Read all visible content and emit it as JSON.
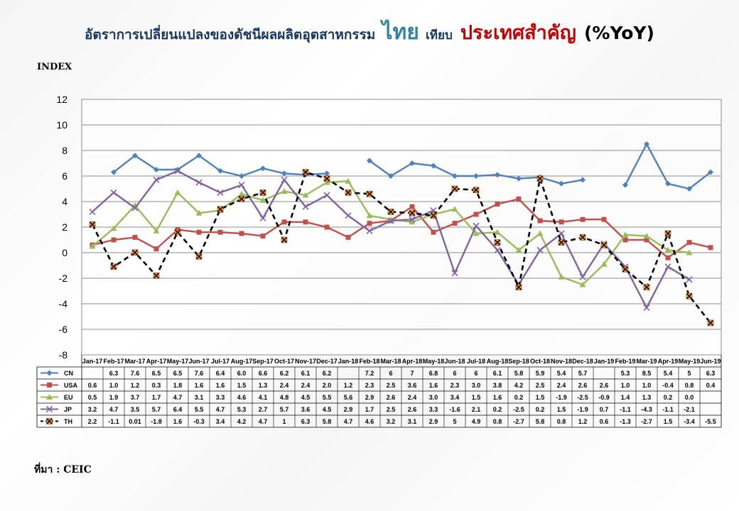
{
  "header": {
    "title_part1": "อัตราการเปลี่ยนแปลงของดัชนีผลผลิตอุตสาหกรรม",
    "title_thai": "ไทย",
    "title_part2": "เทียบ",
    "title_countries": "ประเทศสำคัญ",
    "title_yoy": "(%YoY)"
  },
  "ylabel": "INDEX",
  "source": "ที่มา : CEIC",
  "chart_data": {
    "type": "line",
    "ylabel": "INDEX",
    "ylim": [
      -8,
      12
    ],
    "yticks": [
      -8,
      -6,
      -4,
      -2,
      0,
      2,
      4,
      6,
      8,
      10,
      12
    ],
    "grid": true,
    "legend": "data-table",
    "categories": [
      "Jan-17",
      "Feb-17",
      "Mar-17",
      "Apr-17",
      "May-17",
      "Jun-17",
      "Jul-17",
      "Aug-17",
      "Sep-17",
      "Oct-17",
      "Nov-17",
      "Dec-17",
      "Jan-18",
      "Feb-18",
      "Mar-18",
      "Apr-18",
      "May-18",
      "Jun-18",
      "Jul-18",
      "Aug-18",
      "Sep-18",
      "Oct-18",
      "Nov-18",
      "Dec-18",
      "Jan-19",
      "Feb-19",
      "Mar-19",
      "Apr-19",
      "May-19",
      "Jun-19"
    ],
    "series": [
      {
        "name": "CN",
        "color": "#4f81bd",
        "marker": "diamond",
        "dashed": false,
        "values": [
          null,
          6.3,
          7.6,
          6.5,
          6.5,
          7.6,
          6.4,
          6.0,
          6.6,
          6.2,
          6.1,
          6.2,
          null,
          7.2,
          6,
          7,
          6.8,
          6,
          6,
          6.1,
          5.8,
          5.9,
          5.4,
          5.7,
          null,
          5.3,
          8.5,
          5.4,
          5,
          6.3
        ],
        "labels": [
          "",
          "6.3",
          "7.6",
          "6.5",
          "6.5",
          "7.6",
          "6.4",
          "6.0",
          "6.6",
          "6.2",
          "6.1",
          "6.2",
          "",
          "7.2",
          "6",
          "7",
          "6.8",
          "6",
          "6",
          "6.1",
          "5.8",
          "5.9",
          "5.4",
          "5.7",
          "",
          "5.3",
          "8.5",
          "5.4",
          "5",
          "6.3"
        ]
      },
      {
        "name": "USA",
        "color": "#c0504d",
        "marker": "square",
        "dashed": false,
        "values": [
          0.6,
          1.0,
          1.2,
          0.3,
          1.8,
          1.6,
          1.6,
          1.5,
          1.3,
          2.4,
          2.4,
          2.0,
          1.2,
          2.3,
          2.5,
          3.6,
          1.6,
          2.3,
          3.0,
          3.8,
          4.2,
          2.5,
          2.4,
          2.6,
          2.6,
          1.0,
          1.0,
          -0.4,
          0.8,
          0.4
        ],
        "labels": [
          "0.6",
          "1.0",
          "1.2",
          "0.3",
          "1.8",
          "1.6",
          "1.6",
          "1.5",
          "1.3",
          "2.4",
          "2.4",
          "2.0",
          "1.2",
          "2.3",
          "2.5",
          "3.6",
          "1.6",
          "2.3",
          "3.0",
          "3.8",
          "4.2",
          "2.5",
          "2.4",
          "2.6",
          "2.6",
          "1.0",
          "1.0",
          "-0.4",
          "0.8",
          "0.4"
        ]
      },
      {
        "name": "EU",
        "color": "#9bbb59",
        "marker": "triangle",
        "dashed": false,
        "values": [
          0.5,
          1.9,
          3.7,
          1.7,
          4.7,
          3.1,
          3.3,
          4.6,
          4.1,
          4.8,
          4.5,
          5.5,
          5.6,
          2.9,
          2.6,
          2.4,
          3.0,
          3.4,
          1.5,
          1.6,
          0.2,
          1.5,
          -1.9,
          -2.5,
          -0.9,
          1.4,
          1.3,
          0.2,
          0.0,
          null
        ],
        "labels": [
          "0.5",
          "1.9",
          "3.7",
          "1.7",
          "4.7",
          "3.1",
          "3.3",
          "4.6",
          "4.1",
          "4.8",
          "4.5",
          "5.5",
          "5.6",
          "2.9",
          "2.6",
          "2.4",
          "3.0",
          "3.4",
          "1.5",
          "1.6",
          "0.2",
          "1.5",
          "-1.9",
          "-2.5",
          "-0.9",
          "1.4",
          "1.3",
          "0.2",
          "0.0",
          ""
        ]
      },
      {
        "name": "JP",
        "color": "#8064a2",
        "marker": "x",
        "dashed": false,
        "values": [
          3.2,
          4.7,
          3.5,
          5.7,
          6.4,
          5.5,
          4.7,
          5.3,
          2.7,
          5.7,
          3.6,
          4.5,
          2.9,
          1.7,
          2.5,
          2.6,
          3.3,
          -1.6,
          2.1,
          0.2,
          -2.5,
          0.2,
          1.5,
          -1.9,
          0.7,
          -1.1,
          -4.3,
          -1.1,
          -2.1,
          null
        ],
        "labels": [
          "3.2",
          "4.7",
          "3.5",
          "5.7",
          "6.4",
          "5.5",
          "4.7",
          "5.3",
          "2.7",
          "5.7",
          "3.6",
          "4.5",
          "2.9",
          "1.7",
          "2.5",
          "2.6",
          "3.3",
          "-1.6",
          "2.1",
          "0.2",
          "-2.5",
          "0.2",
          "1.5",
          "-1.9",
          "0.7",
          "-1.1",
          "-4.3",
          "-1.1",
          "-2.1",
          ""
        ]
      },
      {
        "name": "TH",
        "color": "#000000",
        "marker": "star",
        "marker_color": "#f79646",
        "dashed": true,
        "values": [
          2.2,
          -1.1,
          0.01,
          -1.8,
          1.6,
          -0.3,
          3.4,
          4.2,
          4.7,
          1,
          6.3,
          5.8,
          4.7,
          4.6,
          3.2,
          3.1,
          2.9,
          5,
          4.9,
          0.8,
          -2.7,
          5.8,
          0.8,
          1.2,
          0.6,
          -1.3,
          -2.7,
          1.5,
          -3.4,
          -5.5
        ],
        "labels": [
          "2.2",
          "-1.1",
          "0.01",
          "-1.8",
          "1.6",
          "-0.3",
          "3.4",
          "4.2",
          "4.7",
          "1",
          "6.3",
          "5.8",
          "4.7",
          "4.6",
          "3.2",
          "3.1",
          "2.9",
          "5",
          "4.9",
          "0.8",
          "-2.7",
          "5.8",
          "0.8",
          "1.2",
          "0.6",
          "-1.3",
          "-2.7",
          "1.5",
          "-3.4",
          "-5.5"
        ]
      }
    ]
  }
}
